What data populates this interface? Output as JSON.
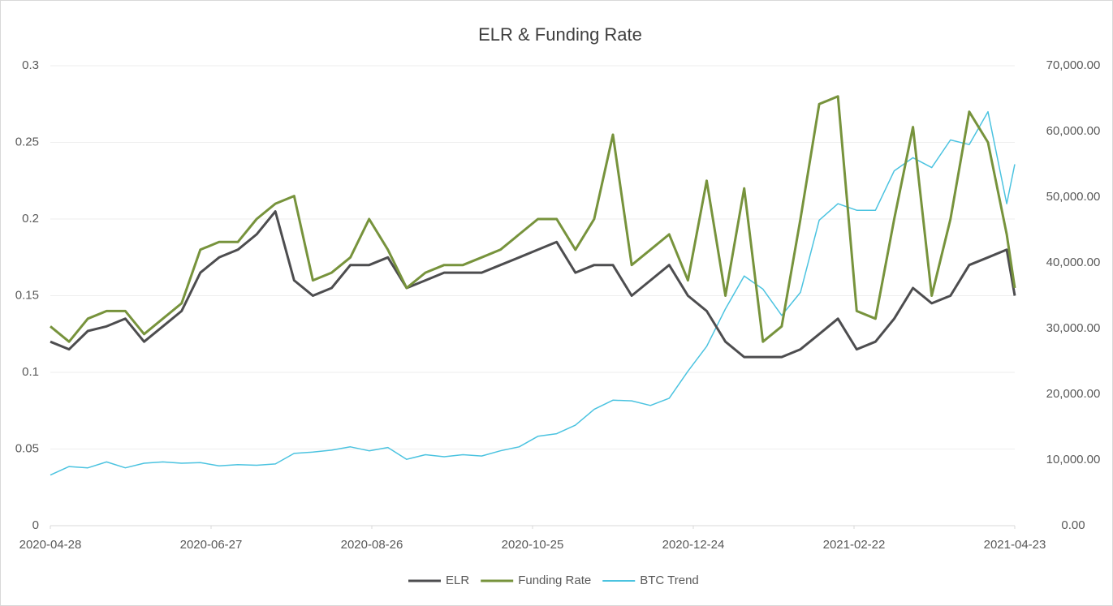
{
  "chart_data": {
    "type": "line",
    "title": "ELR & Funding Rate",
    "x": [
      "2020-04-28",
      "2020-05-05",
      "2020-05-12",
      "2020-05-19",
      "2020-05-26",
      "2020-06-02",
      "2020-06-09",
      "2020-06-16",
      "2020-06-23",
      "2020-06-30",
      "2020-07-07",
      "2020-07-14",
      "2020-07-21",
      "2020-07-28",
      "2020-08-04",
      "2020-08-11",
      "2020-08-18",
      "2020-08-25",
      "2020-09-01",
      "2020-09-08",
      "2020-09-15",
      "2020-09-22",
      "2020-09-29",
      "2020-10-06",
      "2020-10-13",
      "2020-10-20",
      "2020-10-27",
      "2020-11-03",
      "2020-11-10",
      "2020-11-17",
      "2020-11-24",
      "2020-12-01",
      "2020-12-08",
      "2020-12-15",
      "2020-12-22",
      "2020-12-29",
      "2021-01-05",
      "2021-01-12",
      "2021-01-19",
      "2021-01-26",
      "2021-02-02",
      "2021-02-09",
      "2021-02-16",
      "2021-02-23",
      "2021-03-02",
      "2021-03-09",
      "2021-03-16",
      "2021-03-23",
      "2021-03-30",
      "2021-04-06",
      "2021-04-13",
      "2021-04-20",
      "2021-04-23"
    ],
    "series": [
      {
        "name": "ELR",
        "color": "#4d4d4f",
        "values": [
          0.12,
          0.115,
          0.127,
          0.13,
          0.135,
          0.12,
          0.13,
          0.14,
          0.165,
          0.175,
          0.18,
          0.19,
          0.205,
          0.16,
          0.15,
          0.155,
          0.17,
          0.17,
          0.175,
          0.155,
          0.16,
          0.165,
          0.165,
          0.165,
          0.17,
          0.175,
          0.18,
          0.185,
          0.165,
          0.17,
          0.17,
          0.15,
          0.16,
          0.17,
          0.15,
          0.14,
          0.12,
          0.11,
          0.11,
          0.11,
          0.115,
          0.125,
          0.135,
          0.115,
          0.12,
          0.135,
          0.155,
          0.145,
          0.15,
          0.17,
          0.175,
          0.18,
          0.15
        ]
      },
      {
        "name": "Funding Rate",
        "color": "#77933c",
        "values": [
          0.13,
          0.12,
          0.135,
          0.14,
          0.14,
          0.125,
          0.135,
          0.145,
          0.18,
          0.185,
          0.185,
          0.2,
          0.21,
          0.215,
          0.16,
          0.165,
          0.175,
          0.2,
          0.18,
          0.155,
          0.165,
          0.17,
          0.17,
          0.175,
          0.18,
          0.19,
          0.2,
          0.2,
          0.18,
          0.2,
          0.255,
          0.17,
          0.18,
          0.19,
          0.16,
          0.225,
          0.15,
          0.22,
          0.12,
          0.13,
          0.2,
          0.275,
          0.28,
          0.14,
          0.135,
          0.2,
          0.26,
          0.15,
          0.2,
          0.27,
          0.25,
          0.19,
          0.155
        ]
      },
      {
        "name": "BTC Trend",
        "color": "#4bc3e0",
        "axis": "y2",
        "values": [
          7700,
          9000,
          8800,
          9700,
          8800,
          9500,
          9700,
          9500,
          9600,
          9100,
          9300,
          9200,
          9400,
          11000,
          11200,
          11500,
          12000,
          11400,
          11900,
          10100,
          10800,
          10500,
          10800,
          10600,
          11400,
          12000,
          13600,
          14000,
          15300,
          17700,
          19100,
          19000,
          18300,
          19400,
          23500,
          27300,
          33000,
          38000,
          36000,
          32000,
          35500,
          46500,
          49000,
          48000,
          48000,
          54000,
          56000,
          54500,
          58700,
          58000,
          63000,
          49000,
          55000
        ]
      }
    ],
    "xlim": [
      "2020-04-28",
      "2021-04-23"
    ],
    "xticks": [
      "2020-04-28",
      "2020-06-27",
      "2020-08-26",
      "2020-10-25",
      "2020-12-24",
      "2021-02-22",
      "2021-04-23"
    ],
    "ylim": [
      0,
      0.3
    ],
    "yticks": [
      0,
      0.05,
      0.1,
      0.15,
      0.2,
      0.25,
      0.3
    ],
    "y2lim": [
      0,
      70000
    ],
    "y2ticks": [
      {
        "value": 0,
        "label": "0.00"
      },
      {
        "value": 10000,
        "label": "10,000.00"
      },
      {
        "value": 20000,
        "label": "20,000.00"
      },
      {
        "value": 30000,
        "label": "30,000.00"
      },
      {
        "value": 40000,
        "label": "40,000.00"
      },
      {
        "value": 50000,
        "label": "50,000.00"
      },
      {
        "value": 60000,
        "label": "60,000.00"
      },
      {
        "value": 70000,
        "label": "70,000.00"
      }
    ],
    "grid": true,
    "legend": "bottom"
  }
}
